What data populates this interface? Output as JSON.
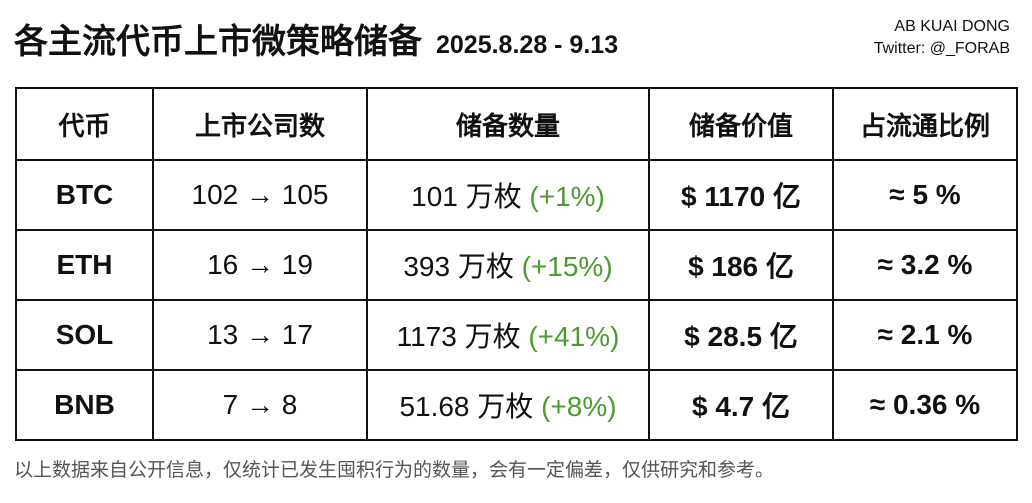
{
  "header": {
    "title": "各主流代币上市微策略储备",
    "date_range": "2025.8.28 - 9.13",
    "credit_line1": "AB KUAI DONG",
    "credit_line2": "Twitter: @_FORAB"
  },
  "table": {
    "columns": [
      "代币",
      "上市公司数",
      "储备数量",
      "储备价值",
      "占流通比例"
    ],
    "rows": [
      {
        "token": "BTC",
        "companies": "102 → 105",
        "amount": "101 万枚",
        "change": "(+1%)",
        "value": "$ 1170 亿",
        "share": "≈ 5 %"
      },
      {
        "token": "ETH",
        "companies": "16 → 19",
        "amount": "393 万枚",
        "change": "(+15%)",
        "value": "$ 186 亿",
        "share": "≈ 3.2 %"
      },
      {
        "token": "SOL",
        "companies": "13 → 17",
        "amount": "1173 万枚",
        "change": "(+41%)",
        "value": "$ 28.5 亿",
        "share": "≈ 2.1 %"
      },
      {
        "token": "BNB",
        "companies": "7 → 8",
        "amount": "51.68 万枚",
        "change": "(+8%)",
        "value": "$ 4.7 亿",
        "share": "≈ 0.36 %"
      }
    ]
  },
  "footer": {
    "note": "以上数据来自公开信息，仅统计已发生囤积行为的数量，会有一定偏差，仅供研究和参考。"
  },
  "colors": {
    "change_green": "#4e9a2f",
    "text": "#111111",
    "footer_text": "#555555"
  }
}
